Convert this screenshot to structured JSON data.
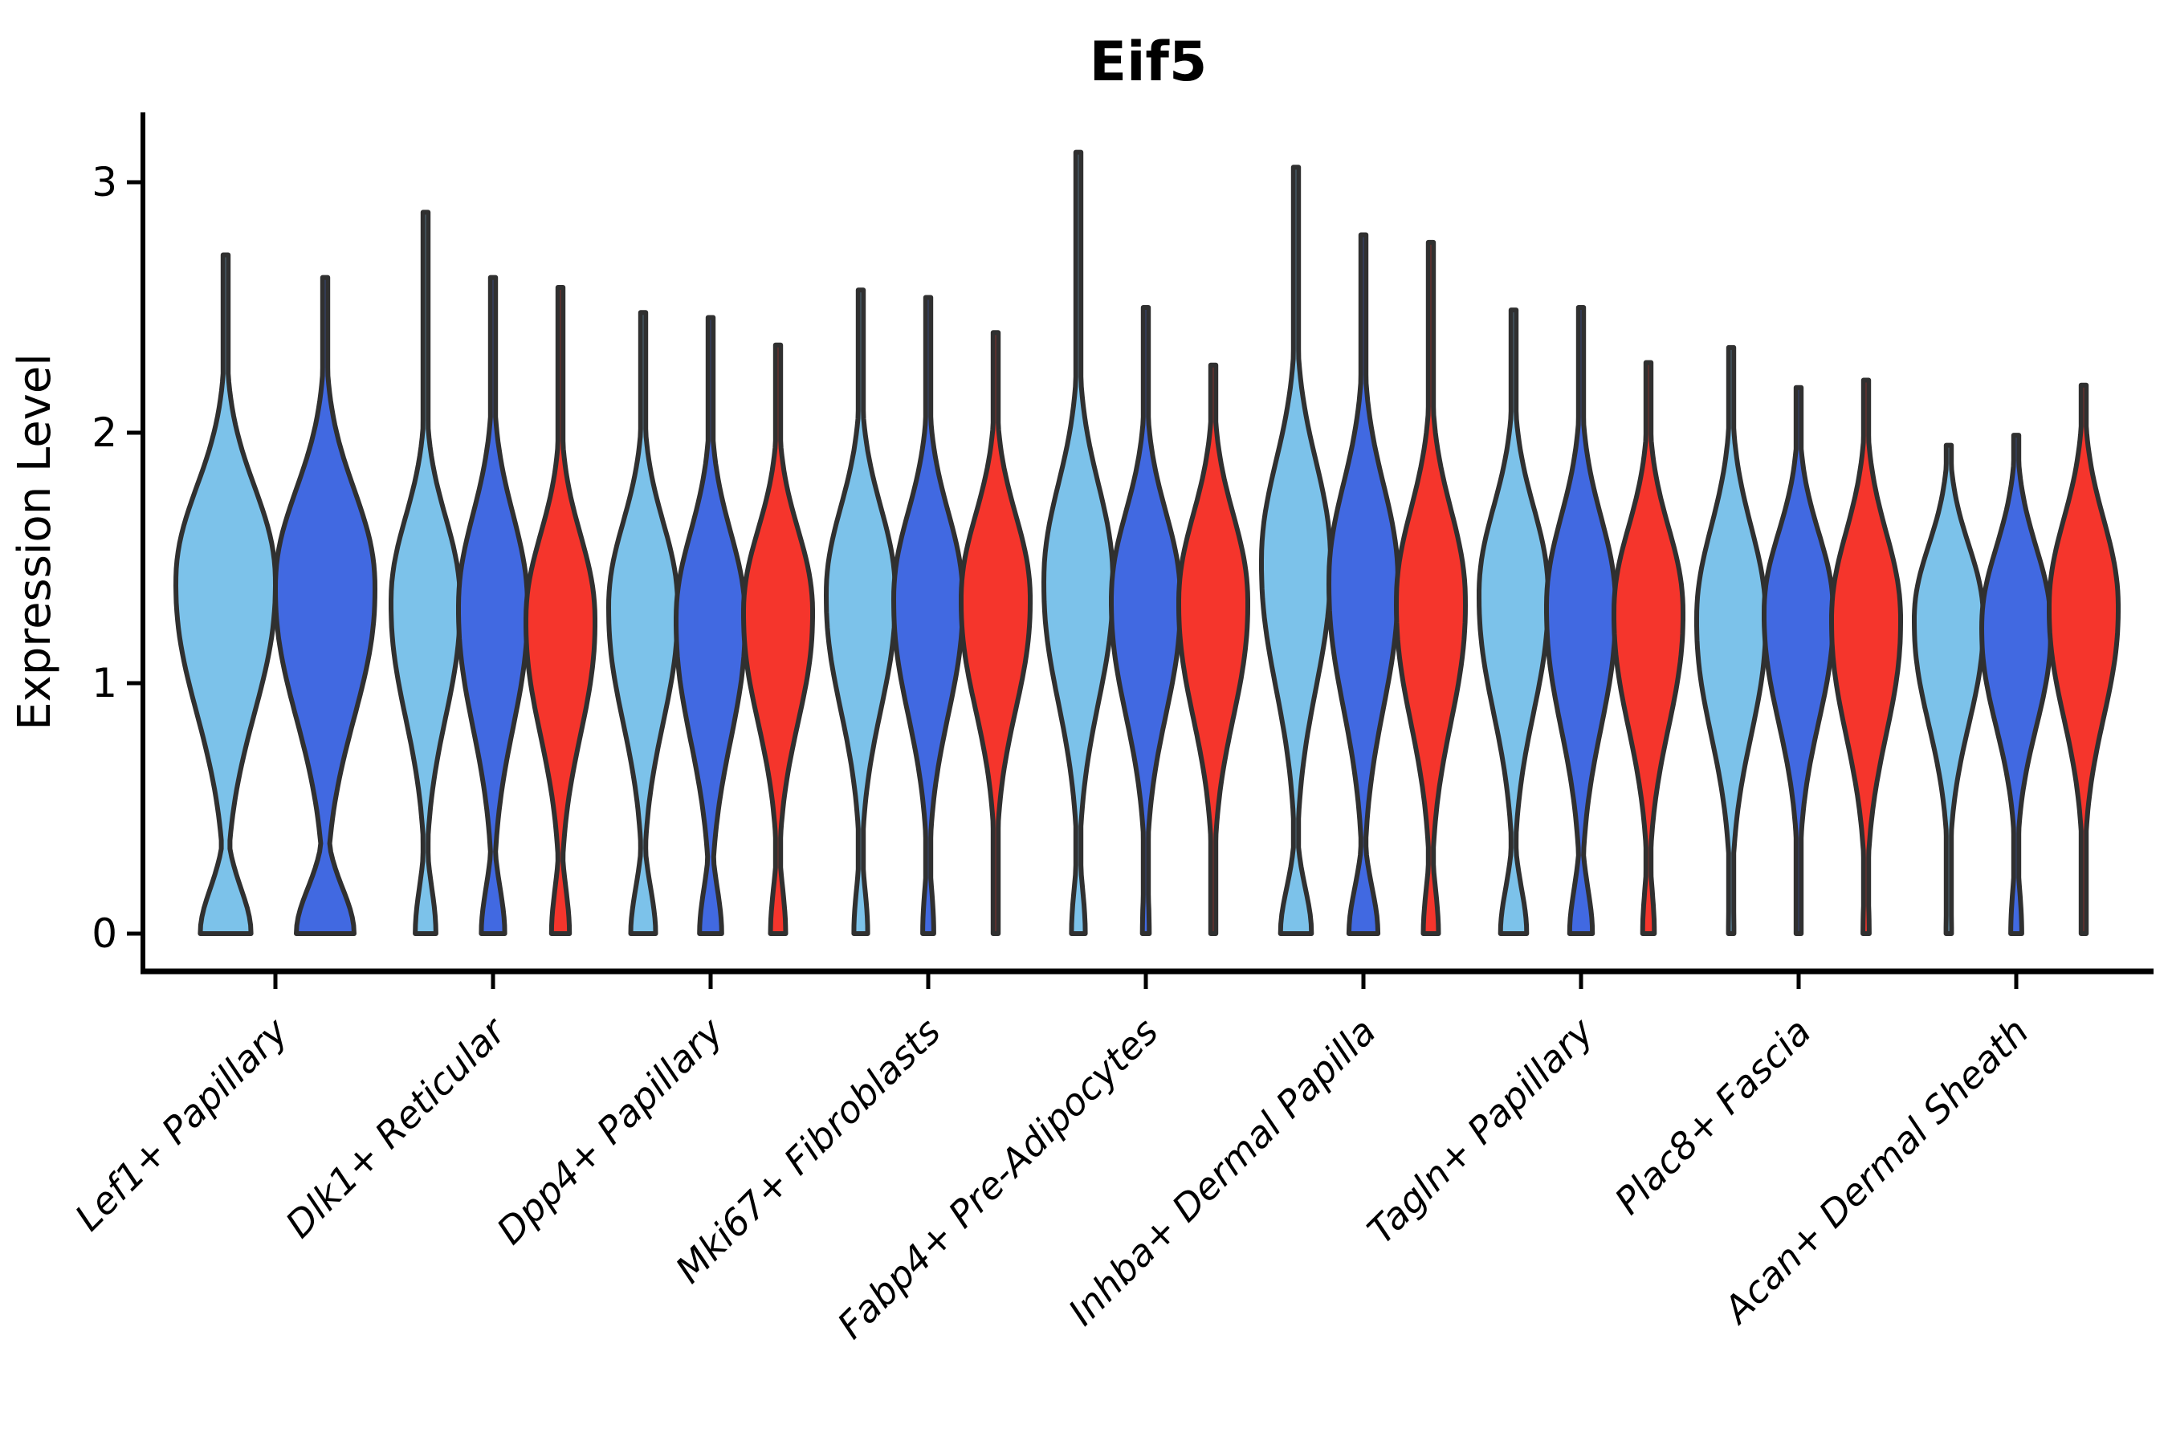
{
  "chart_data": {
    "type": "violin",
    "title": "Eif5",
    "xlabel": "",
    "ylabel": "Expression Level",
    "yticks": [
      0,
      1,
      2,
      3
    ],
    "ylim": [
      0,
      3.25
    ],
    "grid": false,
    "legend": "none",
    "categories": [
      "Lef1+ Papillary",
      "Dlk1+ Reticular",
      "Dpp4+ Papillary",
      "Mki67+ Fibroblasts",
      "Fabp4+ Pre-Adipocytes",
      "Inhba+ Dermal Papilla",
      "Tagln+ Papillary",
      "Plac8+ Fascia",
      "Acan+ Dermal Sheath"
    ],
    "colors": {
      "skyblue": "#7CC2EA",
      "royalblue": "#4169E1",
      "red": "#F5352C",
      "outline": "#303030"
    },
    "groups": [
      {
        "category": "Lef1+ Papillary",
        "violins": [
          {
            "color": "skyblue",
            "max": 2.71,
            "peak": 1.4,
            "sig_lo": 0.5,
            "sig_hi": 0.37,
            "base": 0.51
          },
          {
            "color": "royalblue",
            "max": 2.62,
            "peak": 1.38,
            "sig_lo": 0.5,
            "sig_hi": 0.38,
            "base": 0.58
          }
        ]
      },
      {
        "category": "Dlk1+ Reticular",
        "violins": [
          {
            "color": "skyblue",
            "max": 2.88,
            "peak": 1.32,
            "sig_lo": 0.44,
            "sig_hi": 0.33,
            "base": 0.3
          },
          {
            "color": "royalblue",
            "max": 2.62,
            "peak": 1.3,
            "sig_lo": 0.46,
            "sig_hi": 0.36,
            "base": 0.34
          },
          {
            "color": "red",
            "max": 2.58,
            "peak": 1.25,
            "sig_lo": 0.44,
            "sig_hi": 0.33,
            "base": 0.26
          }
        ]
      },
      {
        "category": "Dpp4+ Papillary",
        "violins": [
          {
            "color": "skyblue",
            "max": 2.48,
            "peak": 1.3,
            "sig_lo": 0.44,
            "sig_hi": 0.33,
            "base": 0.36
          },
          {
            "color": "royalblue",
            "max": 2.46,
            "peak": 1.25,
            "sig_lo": 0.46,
            "sig_hi": 0.34,
            "base": 0.32
          },
          {
            "color": "red",
            "max": 2.35,
            "peak": 1.28,
            "sig_lo": 0.42,
            "sig_hi": 0.32,
            "base": 0.22
          }
        ]
      },
      {
        "category": "Mki67+ Fibroblasts",
        "violins": [
          {
            "color": "skyblue",
            "max": 2.57,
            "peak": 1.35,
            "sig_lo": 0.44,
            "sig_hi": 0.34,
            "base": 0.2
          },
          {
            "color": "royalblue",
            "max": 2.54,
            "peak": 1.33,
            "sig_lo": 0.44,
            "sig_hi": 0.34,
            "base": 0.16
          },
          {
            "color": "red",
            "max": 2.4,
            "peak": 1.33,
            "sig_lo": 0.42,
            "sig_hi": 0.33,
            "base": 0.07
          }
        ]
      },
      {
        "category": "Fabp4+ Pre-Adipocytes",
        "violins": [
          {
            "color": "skyblue",
            "max": 3.12,
            "peak": 1.4,
            "sig_lo": 0.46,
            "sig_hi": 0.38,
            "base": 0.2
          },
          {
            "color": "royalblue",
            "max": 2.5,
            "peak": 1.33,
            "sig_lo": 0.44,
            "sig_hi": 0.34,
            "base": 0.1
          },
          {
            "color": "red",
            "max": 2.27,
            "peak": 1.32,
            "sig_lo": 0.44,
            "sig_hi": 0.34,
            "base": 0.05
          }
        ]
      },
      {
        "category": "Inhba+ Dermal Papilla",
        "violins": [
          {
            "color": "skyblue",
            "max": 3.06,
            "peak": 1.48,
            "sig_lo": 0.48,
            "sig_hi": 0.39,
            "base": 0.45
          },
          {
            "color": "royalblue",
            "max": 2.79,
            "peak": 1.4,
            "sig_lo": 0.48,
            "sig_hi": 0.38,
            "base": 0.42
          },
          {
            "color": "red",
            "max": 2.76,
            "peak": 1.32,
            "sig_lo": 0.46,
            "sig_hi": 0.36,
            "base": 0.22
          }
        ]
      },
      {
        "category": "Tagln+ Papillary",
        "violins": [
          {
            "color": "skyblue",
            "max": 2.49,
            "peak": 1.35,
            "sig_lo": 0.45,
            "sig_hi": 0.34,
            "base": 0.38
          },
          {
            "color": "royalblue",
            "max": 2.5,
            "peak": 1.3,
            "sig_lo": 0.46,
            "sig_hi": 0.35,
            "base": 0.33
          },
          {
            "color": "red",
            "max": 2.28,
            "peak": 1.28,
            "sig_lo": 0.44,
            "sig_hi": 0.33,
            "base": 0.17
          }
        ]
      },
      {
        "category": "Plac8+ Fascia",
        "violins": [
          {
            "color": "skyblue",
            "max": 2.34,
            "peak": 1.25,
            "sig_lo": 0.44,
            "sig_hi": 0.36,
            "base": 0.08
          },
          {
            "color": "royalblue",
            "max": 2.18,
            "peak": 1.28,
            "sig_lo": 0.42,
            "sig_hi": 0.31,
            "base": 0.07
          },
          {
            "color": "red",
            "max": 2.21,
            "peak": 1.25,
            "sig_lo": 0.44,
            "sig_hi": 0.34,
            "base": 0.09
          }
        ]
      },
      {
        "category": "Acan+ Dermal Sheath",
        "violins": [
          {
            "color": "skyblue",
            "max": 1.95,
            "peak": 1.25,
            "sig_lo": 0.4,
            "sig_hi": 0.29,
            "base": 0.08
          },
          {
            "color": "royalblue",
            "max": 1.99,
            "peak": 1.22,
            "sig_lo": 0.38,
            "sig_hi": 0.31,
            "base": 0.16
          },
          {
            "color": "red",
            "max": 2.19,
            "peak": 1.3,
            "sig_lo": 0.42,
            "sig_hi": 0.34,
            "base": 0.06
          }
        ]
      }
    ]
  }
}
